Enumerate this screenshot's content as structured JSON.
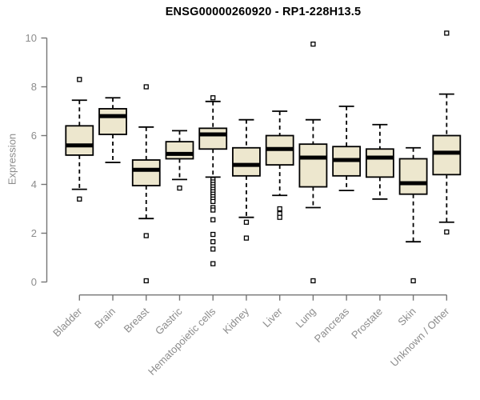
{
  "chart_data": {
    "type": "boxplot",
    "title": "ENSG00000260920 - RP1-228H13.5",
    "ylabel": "Expression",
    "xlabel": "",
    "ylim": [
      0,
      10.2
    ],
    "yticks": [
      0,
      2,
      4,
      6,
      8,
      10
    ],
    "grid": false,
    "legend": null,
    "categories": [
      "Bladder",
      "Brain",
      "Breast",
      "Gastric",
      "Hematopoietic cells",
      "Kidney",
      "Liver",
      "Lung",
      "Pancreas",
      "Prostate",
      "Skin",
      "Unknown / Other"
    ],
    "series": [
      {
        "name": "Bladder",
        "whisker_low": 3.8,
        "q1": 5.2,
        "median": 5.6,
        "q3": 6.4,
        "whisker_high": 7.45,
        "outliers": [
          8.3,
          3.4
        ]
      },
      {
        "name": "Brain",
        "whisker_low": 4.9,
        "q1": 6.05,
        "median": 6.8,
        "q3": 7.1,
        "whisker_high": 7.55,
        "outliers": []
      },
      {
        "name": "Breast",
        "whisker_low": 2.6,
        "q1": 3.95,
        "median": 4.6,
        "q3": 5.0,
        "whisker_high": 6.35,
        "outliers": [
          8.0,
          1.9,
          0.05
        ]
      },
      {
        "name": "Gastric",
        "whisker_low": 4.2,
        "q1": 5.05,
        "median": 5.25,
        "q3": 5.75,
        "whisker_high": 6.2,
        "outliers": [
          3.85
        ]
      },
      {
        "name": "Hematopoietic cells",
        "whisker_low": 4.3,
        "q1": 5.45,
        "median": 6.05,
        "q3": 6.3,
        "whisker_high": 7.4,
        "outliers": [
          7.55,
          4.2,
          4.1,
          4.0,
          3.9,
          3.8,
          3.7,
          3.6,
          3.5,
          3.4,
          3.3,
          3.05,
          2.95,
          2.55,
          1.95,
          1.65,
          1.35,
          0.75
        ]
      },
      {
        "name": "Kidney",
        "whisker_low": 2.65,
        "q1": 4.35,
        "median": 4.8,
        "q3": 5.5,
        "whisker_high": 6.65,
        "outliers": [
          2.45,
          1.8
        ]
      },
      {
        "name": "Liver",
        "whisker_low": 3.55,
        "q1": 4.8,
        "median": 5.45,
        "q3": 6.0,
        "whisker_high": 7.0,
        "outliers": [
          3.0,
          2.8,
          2.65
        ]
      },
      {
        "name": "Lung",
        "whisker_low": 3.05,
        "q1": 3.9,
        "median": 5.1,
        "q3": 5.65,
        "whisker_high": 6.65,
        "outliers": [
          9.75,
          0.05
        ]
      },
      {
        "name": "Pancreas",
        "whisker_low": 3.75,
        "q1": 4.35,
        "median": 5.0,
        "q3": 5.55,
        "whisker_high": 7.2,
        "outliers": []
      },
      {
        "name": "Prostate",
        "whisker_low": 3.4,
        "q1": 4.3,
        "median": 5.1,
        "q3": 5.45,
        "whisker_high": 6.45,
        "outliers": []
      },
      {
        "name": "Skin",
        "whisker_low": 1.65,
        "q1": 3.6,
        "median": 4.05,
        "q3": 5.05,
        "whisker_high": 5.5,
        "outliers": [
          0.05
        ]
      },
      {
        "name": "Unknown / Other",
        "whisker_low": 2.45,
        "q1": 4.4,
        "median": 5.3,
        "q3": 6.0,
        "whisker_high": 7.7,
        "outliers": [
          10.2,
          2.05
        ]
      }
    ],
    "colors": {
      "background": "#FFFFFF",
      "box_fill": "#EDE7CE",
      "box_stroke": "#000000",
      "axis": "#757575",
      "tick_label": "#8C8C8C",
      "title": "#000000"
    }
  }
}
